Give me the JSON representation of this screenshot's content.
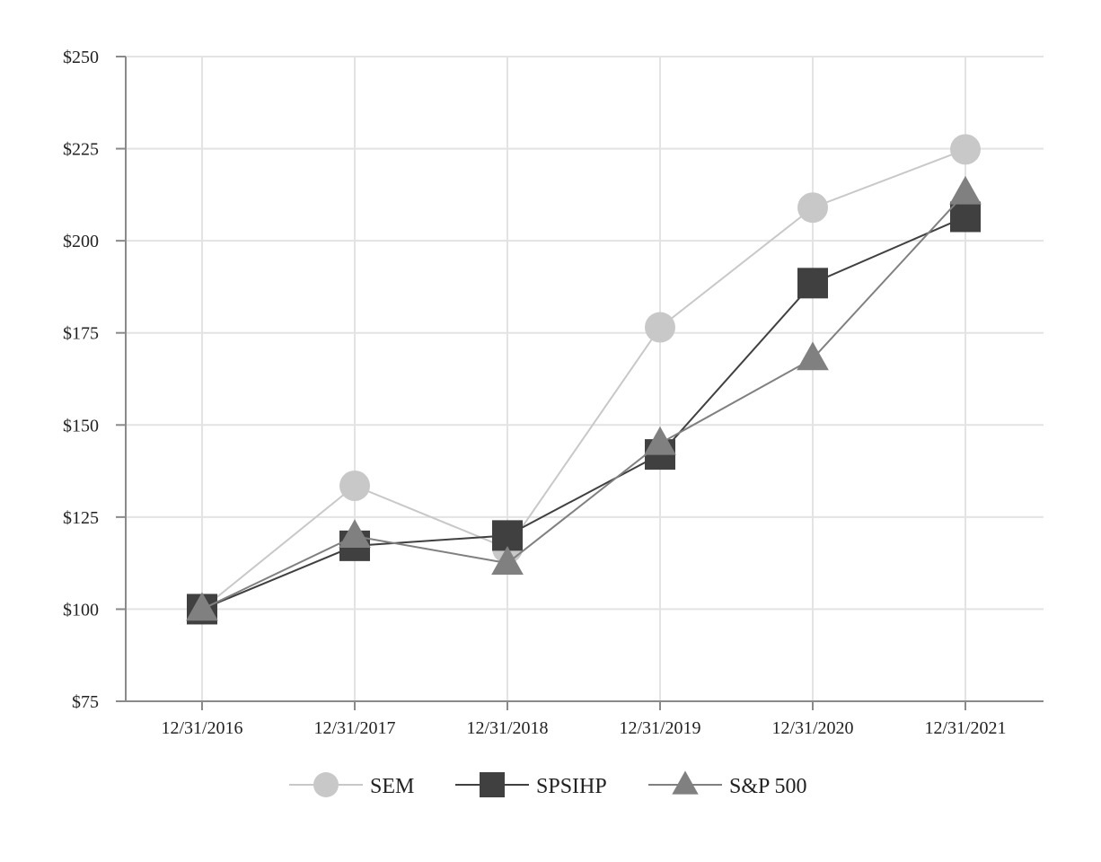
{
  "chart_data": {
    "type": "line",
    "categories": [
      "12/31/2016",
      "12/31/2017",
      "12/31/2018",
      "12/31/2019",
      "12/31/2020",
      "12/31/2021"
    ],
    "y_tick_labels": [
      "$75",
      "$100",
      "$125",
      "$150",
      "$175",
      "$200",
      "$225",
      "$250"
    ],
    "y_tick_values": [
      75,
      100,
      125,
      150,
      175,
      200,
      225,
      250
    ],
    "ylim": [
      75,
      250
    ],
    "grid": true,
    "legend_position": "bottom-center",
    "title": "",
    "xlabel": "",
    "ylabel": "",
    "series": [
      {
        "name": "SEM",
        "marker": "circle",
        "color": "#c8c8c8",
        "line_color": "#c8c8c8",
        "values": [
          100,
          133.5,
          116.5,
          176.5,
          209,
          224.8
        ]
      },
      {
        "name": "SPSIHP",
        "marker": "square",
        "color": "#404040",
        "line_color": "#404040",
        "values": [
          100,
          117.2,
          120.0,
          142,
          188.5,
          206.5
        ]
      },
      {
        "name": "S&P 500",
        "marker": "triangle",
        "color": "#808080",
        "line_color": "#808080",
        "values": [
          100,
          119.8,
          112.5,
          145,
          168,
          213
        ]
      }
    ]
  }
}
